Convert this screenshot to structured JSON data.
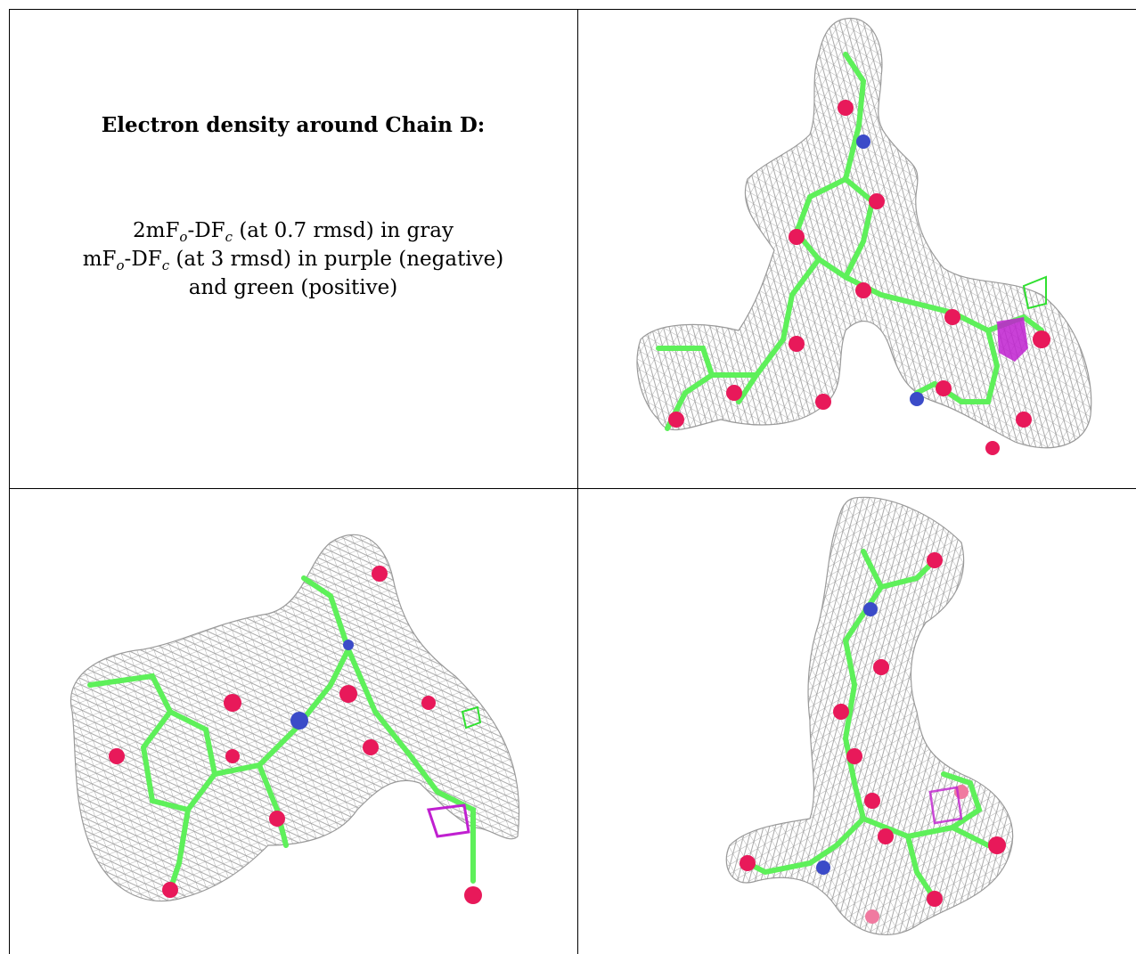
{
  "caption": {
    "title": "Electron density around Chain D:",
    "line1_prefix": "2mF",
    "line1_sub1": "o",
    "line1_mid": "-DF",
    "line1_sub2": "c",
    "line1_suffix": " (at 0.7 rmsd) in gray",
    "line2_prefix": "mF",
    "line2_sub1": "o",
    "line2_mid": "-DF",
    "line2_sub2": "c",
    "line2_suffix": " (at 3 rmsd) in purple (negative)",
    "line3": "and green (positive)"
  },
  "colors": {
    "mesh_gray": "#9a9a9a",
    "carbon_green": "#5ef05a",
    "oxygen_red": "#e8195a",
    "nitrogen_blue": "#3b4bc8",
    "negative_purple": "#c020d0",
    "positive_green": "#30e030"
  }
}
